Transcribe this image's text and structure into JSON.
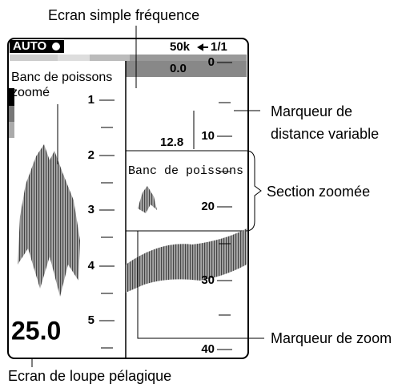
{
  "callouts": {
    "top": "Ecran simple fréquence",
    "range_marker": [
      "Marqueur de",
      "distance variable"
    ],
    "zoom_section": "Section zoomée",
    "zoom_marker": "Marqueur de zoom",
    "bottom": "Ecran de loupe pélagique"
  },
  "screen": {
    "mode": "AUTO",
    "frequency": "50k",
    "page": "1/1",
    "offset": "0.0",
    "range_marker_value": "12.8",
    "depth": "25.0",
    "left_label": [
      "Banc de poissons",
      "zoomé"
    ],
    "zoom_label": "Banc de poissons",
    "left_scale": [
      "1",
      "2",
      "3",
      "4",
      "5"
    ],
    "right_scale": [
      "0",
      "10",
      "20",
      "30",
      "40"
    ]
  }
}
